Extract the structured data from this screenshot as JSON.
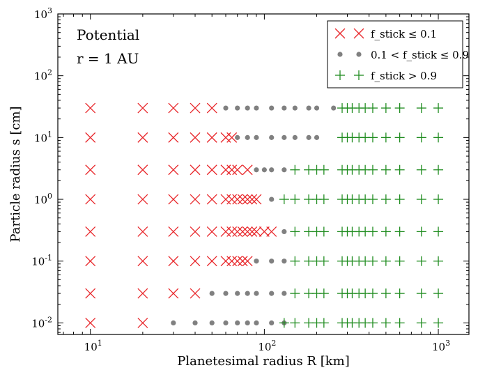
{
  "chart_data": {
    "type": "scatter",
    "xlabel": "Planetesimal radius R [km]",
    "ylabel": "Particle radius s [cm]",
    "xscale": "log",
    "yscale": "log",
    "xlim": [
      6.5,
      1500
    ],
    "ylim": [
      0.0065,
      1000
    ],
    "x_ticks": [
      {
        "value": 10,
        "base": "10",
        "exp": "1"
      },
      {
        "value": 100,
        "base": "10",
        "exp": "2"
      },
      {
        "value": 1000,
        "base": "10",
        "exp": "3"
      }
    ],
    "y_ticks": [
      {
        "value": 0.01,
        "base": "10",
        "exp": "-2"
      },
      {
        "value": 0.1,
        "base": "10",
        "exp": "-1"
      },
      {
        "value": 1,
        "base": "10",
        "exp": "0"
      },
      {
        "value": 10,
        "base": "10",
        "exp": "1"
      },
      {
        "value": 100,
        "base": "10",
        "exp": "2"
      },
      {
        "value": 1000,
        "base": "10",
        "exp": "3"
      }
    ],
    "annotations": [
      "Potential",
      "r = 1 AU"
    ],
    "legend_position": "top-right",
    "grid": false,
    "series": [
      {
        "name": "f_stick ≤ 0.1",
        "marker": "x",
        "color": "#e8262a",
        "points": [
          [
            10,
            30
          ],
          [
            20,
            30
          ],
          [
            30,
            30
          ],
          [
            40,
            30
          ],
          [
            50,
            30
          ],
          [
            10,
            10
          ],
          [
            20,
            10
          ],
          [
            30,
            10
          ],
          [
            40,
            10
          ],
          [
            50,
            10
          ],
          [
            60,
            10
          ],
          [
            65,
            10
          ],
          [
            10,
            3
          ],
          [
            20,
            3
          ],
          [
            30,
            3
          ],
          [
            40,
            3
          ],
          [
            50,
            3
          ],
          [
            60,
            3
          ],
          [
            65,
            3
          ],
          [
            70,
            3
          ],
          [
            80,
            3
          ],
          [
            10,
            1
          ],
          [
            20,
            1
          ],
          [
            30,
            1
          ],
          [
            40,
            1
          ],
          [
            50,
            1
          ],
          [
            60,
            1
          ],
          [
            65,
            1
          ],
          [
            70,
            1
          ],
          [
            75,
            1
          ],
          [
            80,
            1
          ],
          [
            85,
            1
          ],
          [
            90,
            1
          ],
          [
            10,
            0.3
          ],
          [
            20,
            0.3
          ],
          [
            30,
            0.3
          ],
          [
            40,
            0.3
          ],
          [
            50,
            0.3
          ],
          [
            60,
            0.3
          ],
          [
            65,
            0.3
          ],
          [
            70,
            0.3
          ],
          [
            75,
            0.3
          ],
          [
            80,
            0.3
          ],
          [
            85,
            0.3
          ],
          [
            90,
            0.3
          ],
          [
            100,
            0.3
          ],
          [
            110,
            0.3
          ],
          [
            10,
            0.1
          ],
          [
            20,
            0.1
          ],
          [
            30,
            0.1
          ],
          [
            40,
            0.1
          ],
          [
            50,
            0.1
          ],
          [
            60,
            0.1
          ],
          [
            65,
            0.1
          ],
          [
            70,
            0.1
          ],
          [
            75,
            0.1
          ],
          [
            80,
            0.1
          ],
          [
            10,
            0.03
          ],
          [
            20,
            0.03
          ],
          [
            30,
            0.03
          ],
          [
            40,
            0.03
          ],
          [
            10,
            0.01
          ],
          [
            20,
            0.01
          ]
        ]
      },
      {
        "name": "0.1 < f_stick ≤ 0.9",
        "marker": "dot",
        "color": "#808080",
        "points": [
          [
            60,
            30
          ],
          [
            70,
            30
          ],
          [
            80,
            30
          ],
          [
            90,
            30
          ],
          [
            110,
            30
          ],
          [
            130,
            30
          ],
          [
            150,
            30
          ],
          [
            180,
            30
          ],
          [
            200,
            30
          ],
          [
            250,
            30
          ],
          [
            70,
            10
          ],
          [
            80,
            10
          ],
          [
            90,
            10
          ],
          [
            110,
            10
          ],
          [
            130,
            10
          ],
          [
            150,
            10
          ],
          [
            180,
            10
          ],
          [
            200,
            10
          ],
          [
            90,
            3
          ],
          [
            100,
            3
          ],
          [
            110,
            3
          ],
          [
            130,
            3
          ],
          [
            110,
            1
          ],
          [
            130,
            0.3
          ],
          [
            90,
            0.1
          ],
          [
            110,
            0.1
          ],
          [
            130,
            0.1
          ],
          [
            50,
            0.03
          ],
          [
            60,
            0.03
          ],
          [
            70,
            0.03
          ],
          [
            80,
            0.03
          ],
          [
            90,
            0.03
          ],
          [
            110,
            0.03
          ],
          [
            130,
            0.03
          ],
          [
            30,
            0.01
          ],
          [
            40,
            0.01
          ],
          [
            50,
            0.01
          ],
          [
            60,
            0.01
          ],
          [
            70,
            0.01
          ],
          [
            80,
            0.01
          ],
          [
            90,
            0.01
          ],
          [
            110,
            0.01
          ],
          [
            130,
            0.01
          ]
        ]
      },
      {
        "name": "f_stick > 0.9",
        "marker": "plus",
        "color": "#1f8c1f",
        "points": [
          [
            280,
            30
          ],
          [
            300,
            30
          ],
          [
            320,
            30
          ],
          [
            350,
            30
          ],
          [
            380,
            30
          ],
          [
            420,
            30
          ],
          [
            500,
            30
          ],
          [
            600,
            30
          ],
          [
            800,
            30
          ],
          [
            1000,
            30
          ],
          [
            280,
            10
          ],
          [
            300,
            10
          ],
          [
            320,
            10
          ],
          [
            350,
            10
          ],
          [
            380,
            10
          ],
          [
            420,
            10
          ],
          [
            500,
            10
          ],
          [
            600,
            10
          ],
          [
            800,
            10
          ],
          [
            1000,
            10
          ],
          [
            150,
            3
          ],
          [
            180,
            3
          ],
          [
            200,
            3
          ],
          [
            220,
            3
          ],
          [
            280,
            3
          ],
          [
            300,
            3
          ],
          [
            320,
            3
          ],
          [
            350,
            3
          ],
          [
            380,
            3
          ],
          [
            420,
            3
          ],
          [
            500,
            3
          ],
          [
            600,
            3
          ],
          [
            800,
            3
          ],
          [
            1000,
            3
          ],
          [
            130,
            1
          ],
          [
            150,
            1
          ],
          [
            180,
            1
          ],
          [
            200,
            1
          ],
          [
            220,
            1
          ],
          [
            280,
            1
          ],
          [
            300,
            1
          ],
          [
            320,
            1
          ],
          [
            350,
            1
          ],
          [
            380,
            1
          ],
          [
            420,
            1
          ],
          [
            500,
            1
          ],
          [
            600,
            1
          ],
          [
            800,
            1
          ],
          [
            1000,
            1
          ],
          [
            150,
            0.3
          ],
          [
            180,
            0.3
          ],
          [
            200,
            0.3
          ],
          [
            220,
            0.3
          ],
          [
            280,
            0.3
          ],
          [
            300,
            0.3
          ],
          [
            320,
            0.3
          ],
          [
            350,
            0.3
          ],
          [
            380,
            0.3
          ],
          [
            420,
            0.3
          ],
          [
            500,
            0.3
          ],
          [
            600,
            0.3
          ],
          [
            800,
            0.3
          ],
          [
            1000,
            0.3
          ],
          [
            150,
            0.1
          ],
          [
            180,
            0.1
          ],
          [
            200,
            0.1
          ],
          [
            220,
            0.1
          ],
          [
            280,
            0.1
          ],
          [
            300,
            0.1
          ],
          [
            320,
            0.1
          ],
          [
            350,
            0.1
          ],
          [
            380,
            0.1
          ],
          [
            420,
            0.1
          ],
          [
            500,
            0.1
          ],
          [
            600,
            0.1
          ],
          [
            800,
            0.1
          ],
          [
            1000,
            0.1
          ],
          [
            150,
            0.03
          ],
          [
            180,
            0.03
          ],
          [
            200,
            0.03
          ],
          [
            220,
            0.03
          ],
          [
            280,
            0.03
          ],
          [
            300,
            0.03
          ],
          [
            320,
            0.03
          ],
          [
            350,
            0.03
          ],
          [
            380,
            0.03
          ],
          [
            420,
            0.03
          ],
          [
            500,
            0.03
          ],
          [
            600,
            0.03
          ],
          [
            800,
            0.03
          ],
          [
            1000,
            0.03
          ],
          [
            130,
            0.01
          ],
          [
            150,
            0.01
          ],
          [
            180,
            0.01
          ],
          [
            200,
            0.01
          ],
          [
            220,
            0.01
          ],
          [
            280,
            0.01
          ],
          [
            300,
            0.01
          ],
          [
            320,
            0.01
          ],
          [
            350,
            0.01
          ],
          [
            380,
            0.01
          ],
          [
            420,
            0.01
          ],
          [
            500,
            0.01
          ],
          [
            600,
            0.01
          ],
          [
            800,
            0.01
          ],
          [
            1000,
            0.01
          ]
        ]
      }
    ]
  }
}
